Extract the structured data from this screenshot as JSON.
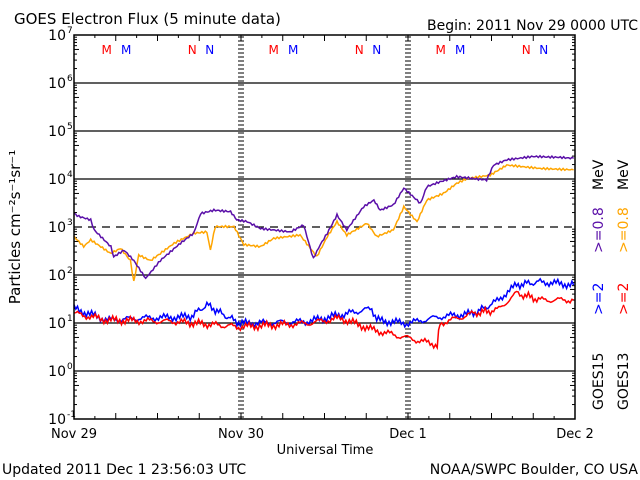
{
  "chart_data": {
    "type": "line",
    "title": "GOES Electron Flux (5 minute data)",
    "begin_label": "Begin: 2011 Nov 29 0000 UTC",
    "xlabel": "Universal Time",
    "ylabel": "Particles cm⁻²s⁻¹sr⁻¹",
    "yscale": "log",
    "ylim": [
      0.1,
      10000000
    ],
    "xlim_hours": [
      0,
      72
    ],
    "x_ticks": [
      {
        "hour": 0,
        "label": "Nov 29"
      },
      {
        "hour": 24,
        "label": "Nov 30"
      },
      {
        "hour": 48,
        "label": "Dec 1"
      },
      {
        "hour": 72,
        "label": "Dec 2"
      }
    ],
    "y_ticks": [
      {
        "exp": 7,
        "base": "10",
        "sup": "7"
      },
      {
        "exp": 6,
        "base": "10",
        "sup": "6"
      },
      {
        "exp": 5,
        "base": "10",
        "sup": "5"
      },
      {
        "exp": 4,
        "base": "10",
        "sup": "4"
      },
      {
        "exp": 3,
        "base": "10",
        "sup": "3"
      },
      {
        "exp": 2,
        "base": "10",
        "sup": "2"
      },
      {
        "exp": 1,
        "base": "10",
        "sup": "1"
      },
      {
        "exp": 0,
        "base": "10",
        "sup": "0"
      },
      {
        "exp": -1,
        "base": "10",
        "sup": "-1"
      }
    ],
    "threshold": {
      "value": 1000,
      "style": "dashed"
    },
    "markers": [
      {
        "hour": 4.7,
        "label": "M",
        "color": "#ff0000"
      },
      {
        "hour": 7.5,
        "label": "M",
        "color": "#0000ff"
      },
      {
        "hour": 17.0,
        "label": "N",
        "color": "#ff0000"
      },
      {
        "hour": 19.5,
        "label": "N",
        "color": "#0000ff"
      }
    ],
    "series": [
      {
        "name": "GOES15 >=0.8 MeV",
        "color": "#5a0fa8",
        "x": [
          0,
          0.7,
          2.4,
          2.9,
          5.3,
          5.7,
          7.2,
          8.6,
          10.3,
          12.4,
          15.3,
          17.2,
          18.2,
          20.1,
          22.5,
          23.4,
          24.9,
          26.8,
          31.1,
          33.0,
          34.4,
          35.4,
          36.4,
          37.8,
          39.2,
          41.6,
          43.1,
          44.0,
          45.9,
          47.4,
          49.8,
          50.7,
          52.6,
          55.0,
          57.4,
          59.3,
          60.3,
          62.2,
          66.0,
          69.9,
          71.8
        ],
        "y": [
          1900,
          1660,
          1410,
          870,
          390,
          240,
          330,
          200,
          85,
          200,
          460,
          740,
          1900,
          2240,
          2090,
          1410,
          1290,
          930,
          790,
          1100,
          220,
          430,
          740,
          1780,
          870,
          2630,
          3630,
          2240,
          2880,
          6460,
          3090,
          6920,
          8710,
          11200,
          10200,
          9550,
          19500,
          25100,
          29500,
          28200,
          26900
        ]
      },
      {
        "name": "GOES13 >=0.8 MeV",
        "color": "#ffa500",
        "x": [
          0,
          1.4,
          2.4,
          5.3,
          6.7,
          8.1,
          8.6,
          9.3,
          11.0,
          12.4,
          14.4,
          17.2,
          19.1,
          19.6,
          20.3,
          23.0,
          24.4,
          26.8,
          28.7,
          32.5,
          34.9,
          36.4,
          37.8,
          39.2,
          42.1,
          43.5,
          45.9,
          47.4,
          49.3,
          50.7,
          53.1,
          55.0,
          56.5,
          59.8,
          62.2,
          67.0,
          71.8
        ],
        "y": [
          630,
          390,
          540,
          280,
          360,
          200,
          72,
          260,
          200,
          280,
          460,
          740,
          790,
          330,
          1020,
          1020,
          430,
          390,
          580,
          680,
          240,
          630,
          1290,
          680,
          1200,
          630,
          870,
          2630,
          1290,
          3630,
          5010,
          8130,
          10200,
          12000,
          19500,
          16600,
          15500
        ]
      },
      {
        "name": "GOES15 >=2 MeV",
        "color": "#0000ff",
        "x": [
          0,
          4.8,
          9.6,
          16.7,
          19.1,
          21.5,
          23.9,
          33.5,
          38.3,
          42.8,
          43.5,
          47.8,
          52.6,
          57.4,
          60.3,
          63.6,
          67.0,
          71.8
        ],
        "y": [
          20,
          11.5,
          12.6,
          13.5,
          24,
          14.8,
          9.8,
          10.7,
          14.8,
          20,
          11.5,
          9.8,
          13.5,
          15.8,
          25.7,
          62,
          72,
          62
        ]
      },
      {
        "name": "GOES13 >=2 MeV",
        "color": "#ff0000",
        "x": [
          0,
          4.8,
          14.4,
          23.9,
          33.5,
          38.3,
          43.1,
          52.2,
          52.6,
          57.4,
          60.8,
          63.6,
          67.0,
          71.8
        ],
        "y": [
          15.8,
          11.5,
          10.7,
          8.3,
          9.8,
          12.6,
          7.1,
          3.5,
          9.8,
          15.8,
          18.6,
          41.7,
          30.2,
          30.2
        ]
      }
    ],
    "legend": {
      "placement": "right",
      "goes15": {
        "mev": "MeV",
        "e08": ">=0.8",
        "e2": ">=2",
        "sat": "GOES15"
      },
      "goes13": {
        "mev": "MeV",
        "e08": ">=0.8",
        "e2": ">=2",
        "sat": "GOES13"
      }
    }
  },
  "footer": {
    "updated": "Updated 2011 Dec  1 23:56:03 UTC",
    "credit": "NOAA/SWPC Boulder, CO USA"
  }
}
